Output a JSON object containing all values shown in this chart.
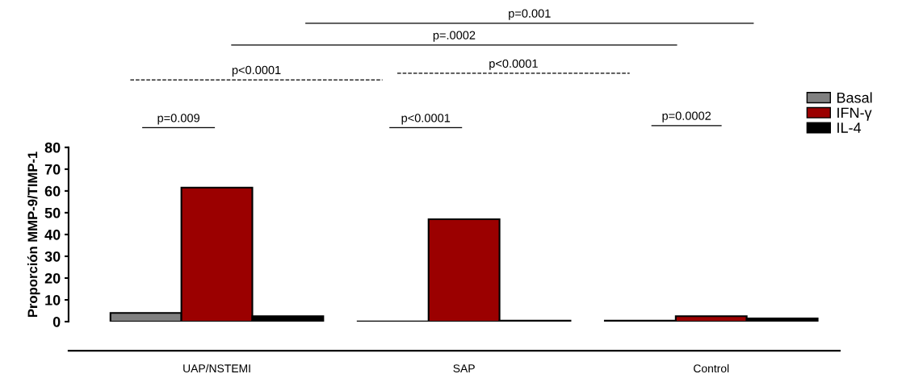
{
  "chart_data": {
    "type": "bar",
    "ylabel": "Proporción MMP-9/TIMP-1",
    "categories": [
      "UAP/NSTEMI",
      "SAP",
      "Control"
    ],
    "series": [
      {
        "name": "Basal",
        "color": "#808080",
        "values": [
          4,
          0.1,
          0.5
        ]
      },
      {
        "name": "IFN-γ",
        "color": "#9b0000",
        "values": [
          61.5,
          47,
          2.5
        ]
      },
      {
        "name": "IL-4",
        "color": "#000000",
        "values": [
          2.5,
          0.5,
          1.5
        ]
      }
    ],
    "ylim": [
      0,
      80
    ],
    "yticks": [
      0,
      10,
      20,
      30,
      40,
      50,
      60,
      70,
      80
    ],
    "grid": false,
    "legend": "top right",
    "annotations": [
      "p=0.009",
      "p<0.0001",
      "p<0.0001",
      "p<0.0001",
      "p=0.0002",
      "p=.0002",
      "p=0.001"
    ]
  }
}
